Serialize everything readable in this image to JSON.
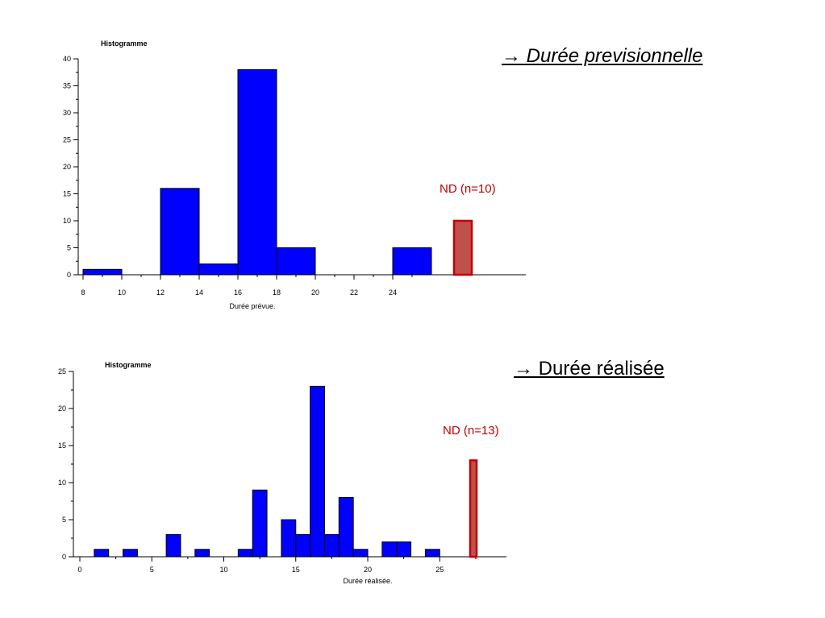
{
  "headings": {
    "top": "→ Durée previsionnelle",
    "bottom": "→ Durée réalisée"
  },
  "colors": {
    "bar_fill": "#0000ff",
    "nd_fill": "#c0504d",
    "nd_stroke": "#c00000",
    "nd_text": "#c00000"
  },
  "chart_data": [
    {
      "type": "bar",
      "title": "Histogramme",
      "xlabel": "Durée prévue.",
      "ylabel": "",
      "bin_width": 2,
      "x": [
        8,
        12,
        14,
        16,
        18,
        24
      ],
      "values": [
        1,
        16,
        2,
        38,
        5,
        5
      ],
      "xticks": [
        8,
        10,
        12,
        14,
        16,
        18,
        20,
        22,
        24
      ],
      "yticks": [
        0,
        5,
        10,
        15,
        20,
        25,
        30,
        35,
        40
      ],
      "ylim": [
        0,
        40
      ],
      "nd": {
        "label": "ND (n=10)",
        "value": 10
      },
      "grid": false
    },
    {
      "type": "bar",
      "title": "Histogramme",
      "xlabel": "Durée réalisée.",
      "ylabel": "",
      "bin_width": 1,
      "x": [
        1,
        3,
        6,
        8,
        11,
        12,
        14,
        15,
        16,
        17,
        18,
        19,
        21,
        22,
        24
      ],
      "values": [
        1,
        1,
        3,
        1,
        1,
        9,
        5,
        3,
        23,
        3,
        8,
        1,
        2,
        2,
        1
      ],
      "xticks": [
        0,
        5,
        10,
        15,
        20,
        25
      ],
      "yticks": [
        0,
        5,
        10,
        15,
        20,
        25
      ],
      "ylim": [
        0,
        25
      ],
      "nd": {
        "label": "ND (n=13)",
        "value": 13
      },
      "grid": false
    }
  ]
}
